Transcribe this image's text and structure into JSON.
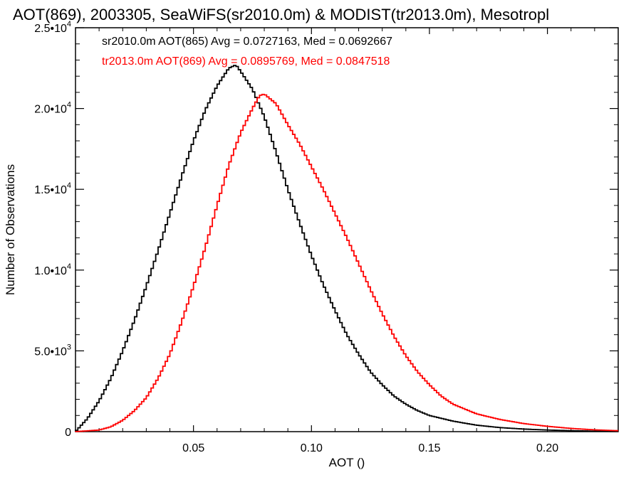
{
  "chart_data": {
    "type": "line",
    "title": "AOT(869), 2003305, SeaWiFS(sr2010.0m) & MODIST(tr2013.0m), Mesotropl",
    "xlabel": "AOT ()",
    "ylabel": "Number of Observations",
    "xlim": [
      0.0,
      0.23
    ],
    "ylim": [
      0,
      25000
    ],
    "x_ticks": [
      0.05,
      0.1,
      0.15,
      0.2
    ],
    "x_tick_labels": [
      "0.05",
      "0.10",
      "0.15",
      "0.20"
    ],
    "y_ticks": [
      0,
      5000,
      10000,
      15000,
      20000,
      25000
    ],
    "y_tick_labels": [
      {
        "mantissa": "0",
        "exponent": ""
      },
      {
        "mantissa": "5.0•10",
        "exponent": "3"
      },
      {
        "mantissa": "1.0•10",
        "exponent": "4"
      },
      {
        "mantissa": "1.5•10",
        "exponent": "4"
      },
      {
        "mantissa": "2.0•10",
        "exponent": "4"
      },
      {
        "mantissa": "2.5•10",
        "exponent": "4"
      }
    ],
    "grid": false,
    "legend_placement": "top-left",
    "series": [
      {
        "label": "sr2010.0m AOT(865) Avg = 0.0727163, Med = 0.0692667",
        "color": "#000000",
        "points": [
          [
            0.0,
            0
          ],
          [
            0.005,
            800
          ],
          [
            0.01,
            1900
          ],
          [
            0.015,
            3300
          ],
          [
            0.02,
            5000
          ],
          [
            0.025,
            6900
          ],
          [
            0.03,
            9000
          ],
          [
            0.035,
            11200
          ],
          [
            0.04,
            13500
          ],
          [
            0.045,
            15800
          ],
          [
            0.05,
            18000
          ],
          [
            0.055,
            19900
          ],
          [
            0.06,
            21400
          ],
          [
            0.065,
            22500
          ],
          [
            0.068,
            22700
          ],
          [
            0.07,
            22300
          ],
          [
            0.075,
            21200
          ],
          [
            0.08,
            19500
          ],
          [
            0.085,
            17300
          ],
          [
            0.09,
            15000
          ],
          [
            0.095,
            12900
          ],
          [
            0.1,
            10900
          ],
          [
            0.105,
            9100
          ],
          [
            0.11,
            7500
          ],
          [
            0.115,
            6000
          ],
          [
            0.12,
            4800
          ],
          [
            0.125,
            3700
          ],
          [
            0.13,
            2900
          ],
          [
            0.135,
            2200
          ],
          [
            0.14,
            1700
          ],
          [
            0.145,
            1300
          ],
          [
            0.15,
            1000
          ],
          [
            0.16,
            650
          ],
          [
            0.17,
            400
          ],
          [
            0.18,
            250
          ],
          [
            0.19,
            160
          ],
          [
            0.2,
            100
          ],
          [
            0.21,
            60
          ],
          [
            0.22,
            30
          ],
          [
            0.23,
            15
          ]
        ]
      },
      {
        "label": "tr2013.0m AOT(869) Avg = 0.0895769, Med = 0.0847518",
        "color": "#ff0000",
        "points": [
          [
            0.0,
            0
          ],
          [
            0.01,
            100
          ],
          [
            0.015,
            300
          ],
          [
            0.02,
            700
          ],
          [
            0.025,
            1300
          ],
          [
            0.03,
            2100
          ],
          [
            0.035,
            3300
          ],
          [
            0.04,
            4800
          ],
          [
            0.045,
            6800
          ],
          [
            0.05,
            9000
          ],
          [
            0.055,
            11400
          ],
          [
            0.06,
            14000
          ],
          [
            0.065,
            16500
          ],
          [
            0.07,
            18500
          ],
          [
            0.075,
            20000
          ],
          [
            0.078,
            20800
          ],
          [
            0.08,
            20900
          ],
          [
            0.085,
            20300
          ],
          [
            0.09,
            19000
          ],
          [
            0.095,
            17800
          ],
          [
            0.1,
            16400
          ],
          [
            0.105,
            15000
          ],
          [
            0.11,
            13500
          ],
          [
            0.115,
            12000
          ],
          [
            0.12,
            10400
          ],
          [
            0.125,
            8800
          ],
          [
            0.13,
            7300
          ],
          [
            0.135,
            5900
          ],
          [
            0.14,
            4700
          ],
          [
            0.145,
            3700
          ],
          [
            0.15,
            2900
          ],
          [
            0.155,
            2200
          ],
          [
            0.16,
            1700
          ],
          [
            0.17,
            1100
          ],
          [
            0.18,
            750
          ],
          [
            0.19,
            500
          ],
          [
            0.2,
            330
          ],
          [
            0.21,
            200
          ],
          [
            0.22,
            110
          ],
          [
            0.23,
            60
          ]
        ]
      }
    ]
  }
}
